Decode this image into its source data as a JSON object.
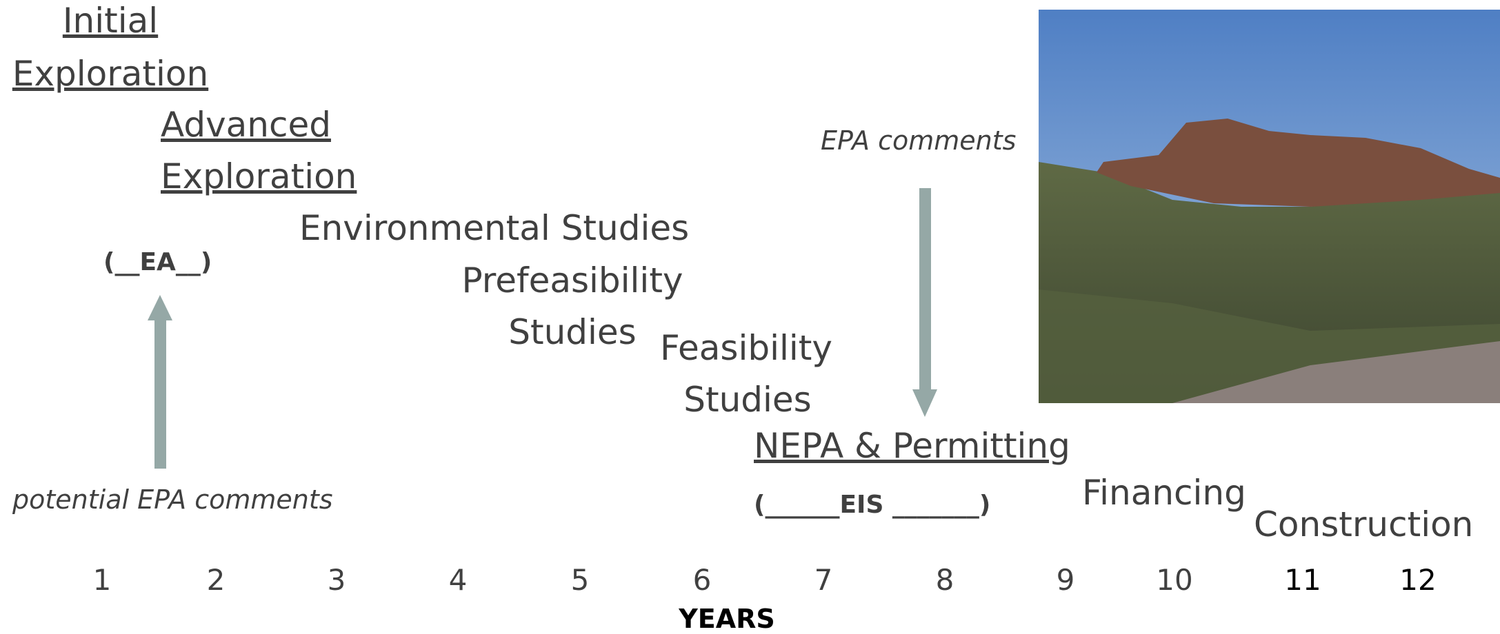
{
  "stages": [
    {
      "lines": [
        "Initial",
        "Exploration"
      ]
    },
    {
      "lines": [
        "Advanced",
        "Exploration"
      ]
    },
    {
      "lines": [
        "Environmental Studies"
      ]
    },
    {
      "lines": [
        "Prefeasibility",
        "Studies"
      ]
    },
    {
      "lines": [
        "Feasibility",
        "Studies"
      ]
    },
    {
      "lines": [
        "NEPA & Permitting"
      ]
    },
    {
      "lines": [
        "Financing"
      ]
    },
    {
      "lines": [
        "Construction"
      ]
    }
  ],
  "review_markers": [
    "(__EA__)",
    "(______EIS _______)"
  ],
  "annotations": [
    "potential EPA comments",
    "EPA comments"
  ],
  "years": [
    1,
    2,
    3,
    4,
    5,
    6,
    7,
    8,
    9,
    10,
    11,
    12
  ],
  "axis_label": "YEARS"
}
